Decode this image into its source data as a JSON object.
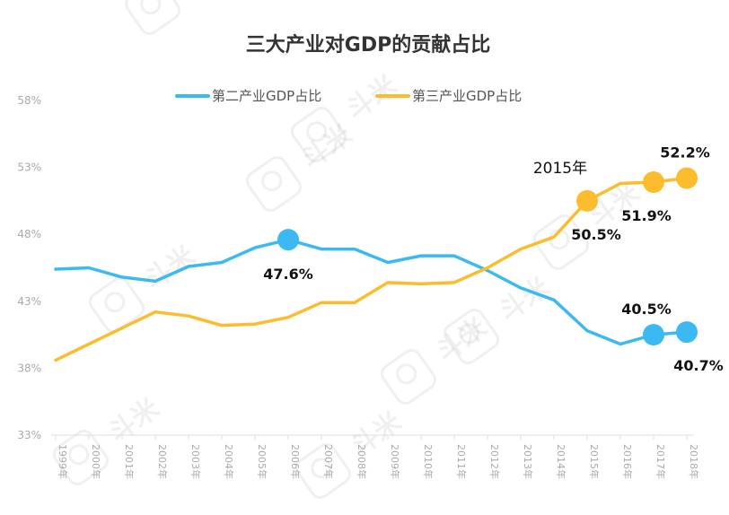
{
  "chart_data": {
    "type": "line",
    "title": "三大产业对GDP的贡献占比",
    "x": [
      "1999年",
      "2000年",
      "2001年",
      "2002年",
      "2003年",
      "2004年",
      "2005年",
      "2006年",
      "2007年",
      "2008年",
      "2009年",
      "2010年",
      "2011年",
      "2012年",
      "2013年",
      "2014年",
      "2015年",
      "2016年",
      "2017年",
      "2018年"
    ],
    "yticks": [
      "33%",
      "38%",
      "43%",
      "48%",
      "53%",
      "58%"
    ],
    "ylim": [
      33,
      58
    ],
    "legend_position": "top-center",
    "grid": false,
    "series": [
      {
        "name": "第二产业GDP占比",
        "color": "#3cb9f2",
        "values": [
          45.4,
          45.5,
          44.8,
          44.5,
          45.6,
          45.9,
          47.0,
          47.6,
          46.9,
          46.9,
          45.9,
          46.4,
          46.4,
          45.3,
          44.0,
          43.1,
          40.8,
          39.8,
          40.5,
          40.7
        ]
      },
      {
        "name": "第三产业GDP占比",
        "color": "#fbbd2e",
        "values": [
          38.6,
          39.8,
          41.0,
          42.2,
          41.9,
          41.2,
          41.3,
          41.8,
          42.9,
          42.9,
          44.4,
          44.3,
          44.4,
          45.5,
          46.9,
          47.8,
          50.5,
          51.8,
          51.9,
          52.2
        ]
      }
    ],
    "data_labels": [
      {
        "series": 0,
        "x": "2006年",
        "text": "47.6%"
      },
      {
        "series": 0,
        "x": "2017年",
        "text": "40.5%"
      },
      {
        "series": 0,
        "x": "2018年",
        "text": "40.7%"
      },
      {
        "series": 1,
        "x": "2015年",
        "text": "50.5%"
      },
      {
        "series": 1,
        "x": "2017年",
        "text": "51.9%"
      },
      {
        "series": 1,
        "x": "2018年",
        "text": "52.2%"
      }
    ],
    "annotations": [
      {
        "series": 1,
        "x": "2015年",
        "text": "2015年"
      }
    ],
    "watermark": "斗米"
  }
}
